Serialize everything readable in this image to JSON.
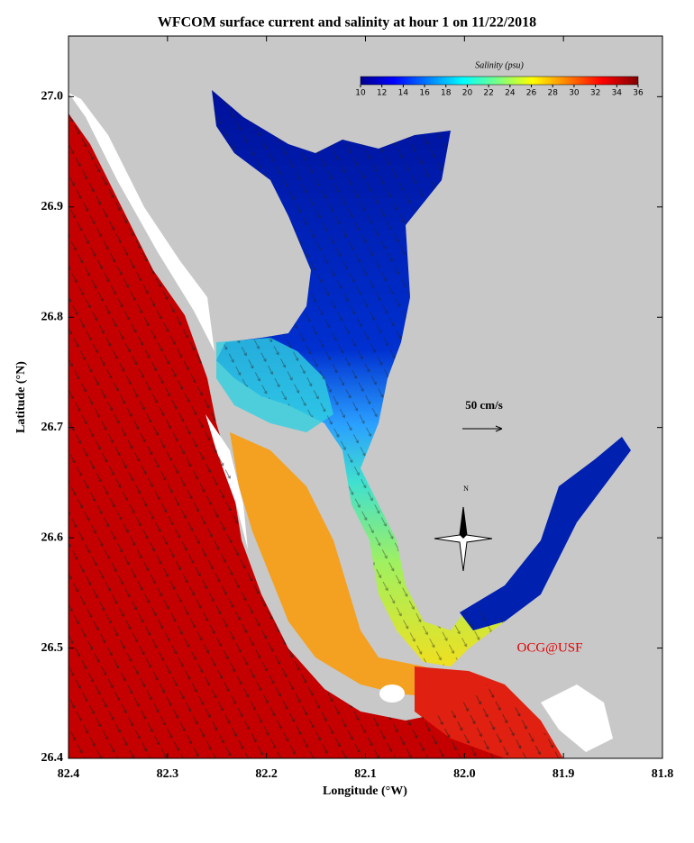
{
  "title": "WFCOM surface current and salinity at hour 1 on 11/22/2018",
  "x_axis": {
    "label": "Longitude (°W)",
    "lim": [
      82.4,
      81.8
    ],
    "ticks": [
      82.4,
      82.3,
      82.2,
      82.1,
      {
        "value": 82.0,
        "label": "82.0"
      },
      81.9,
      81.8
    ]
  },
  "y_axis": {
    "label": "Latitude (°N)",
    "lim": [
      26.4,
      27.055
    ],
    "ticks": [
      26.4,
      26.5,
      26.6,
      26.7,
      26.8,
      26.9,
      {
        "value": 27.0,
        "label": "27.0"
      }
    ]
  },
  "colorbar": {
    "label": "Salinity (psu)",
    "lim": [
      10,
      36
    ],
    "ticks": [
      10,
      12,
      14,
      16,
      18,
      20,
      22,
      24,
      26,
      28,
      30,
      32,
      34,
      36
    ]
  },
  "annotations": {
    "scale_label": "50 cm/s",
    "credit": "OCG@USF",
    "compass_label": "N"
  }
}
